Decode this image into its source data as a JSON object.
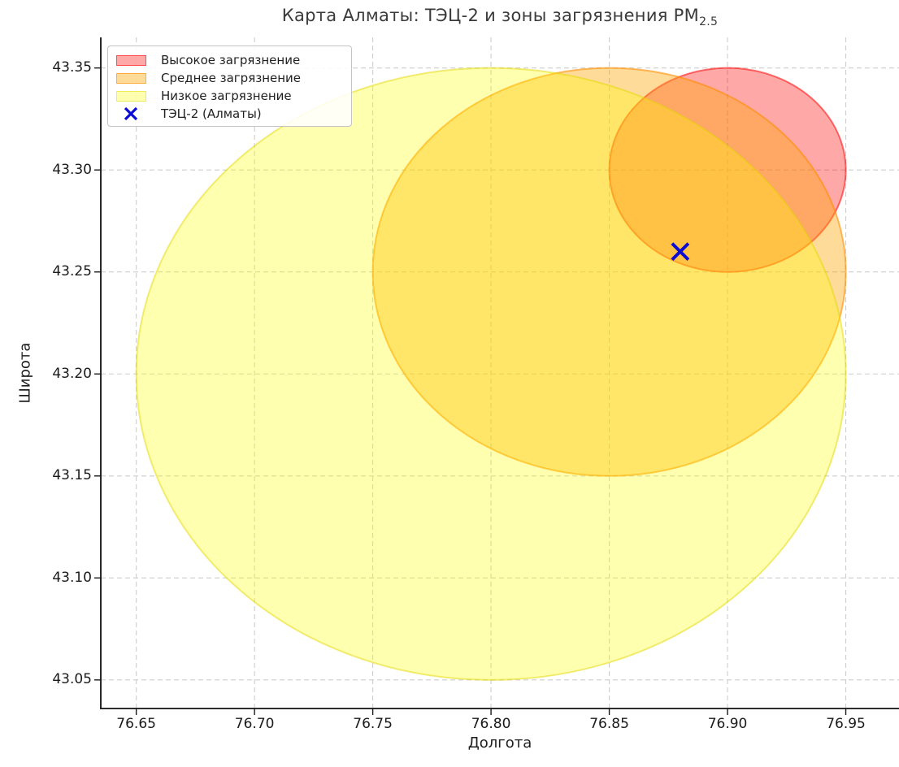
{
  "figure": {
    "title": {
      "main": "Карта Алматы: ТЭЦ-2 и зоны загрязнения PM",
      "sub": "2.5"
    },
    "xlabel": "Долгота",
    "ylabel": "Широта"
  },
  "legend": {
    "position": "upper left",
    "items": [
      {
        "label": "Высокое загрязнение",
        "swatch": "patch",
        "fill": "rgba(255,0,0,0.34)",
        "stroke": "rgba(255,0,0,0.55)"
      },
      {
        "label": "Среднее загрязнение",
        "swatch": "patch",
        "fill": "rgba(255,165,0,0.40)",
        "stroke": "rgba(255,140,0,0.60)"
      },
      {
        "label": "Низкое загрязнение",
        "swatch": "patch",
        "fill": "rgba(255,255,0,0.31)",
        "stroke": "rgba(228,215,0,0.50)"
      },
      {
        "label": "ТЭЦ-2 (Алматы)",
        "swatch": "x-marker",
        "color": "#0b0bd6"
      }
    ]
  },
  "chart_data": {
    "type": "scatter",
    "title": "Карта Алматы: ТЭЦ-2 и зоны загрязнения PM2.5",
    "xlabel": "Долгота",
    "ylabel": "Широта",
    "xlim": [
      76.635,
      76.9725
    ],
    "ylim": [
      43.036,
      43.365
    ],
    "xtick_labels": [
      "76.65",
      "76.70",
      "76.75",
      "76.80",
      "76.85",
      "76.90",
      "76.95"
    ],
    "ytick_labels": [
      "43.05",
      "43.10",
      "43.15",
      "43.20",
      "43.25",
      "43.30",
      "43.35"
    ],
    "grid": "dashed",
    "grid_color": "#cdcdcd",
    "legend_position": "upper left",
    "zones": [
      {
        "name": "Высокое загрязнение",
        "center_lon": 76.9,
        "center_lat": 43.3,
        "radius_deg": 0.05,
        "fill": "rgba(255,0,0,0.34)",
        "stroke": "rgba(255,0,0,0.55)"
      },
      {
        "name": "Среднее загрязнение",
        "center_lon": 76.85,
        "center_lat": 43.25,
        "radius_deg": 0.1,
        "fill": "rgba(255,165,0,0.40)",
        "stroke": "rgba(255,140,0,0.60)"
      },
      {
        "name": "Низкое загрязнение",
        "center_lon": 76.8,
        "center_lat": 43.2,
        "radius_deg": 0.15,
        "fill": "rgba(255,255,0,0.31)",
        "stroke": "rgba(228,215,0,0.50)"
      }
    ],
    "points": [
      {
        "name": "ТЭЦ-2 (Алматы)",
        "lon": 76.88,
        "lat": 43.26,
        "marker": "x",
        "color": "#0b0bd6"
      }
    ]
  }
}
